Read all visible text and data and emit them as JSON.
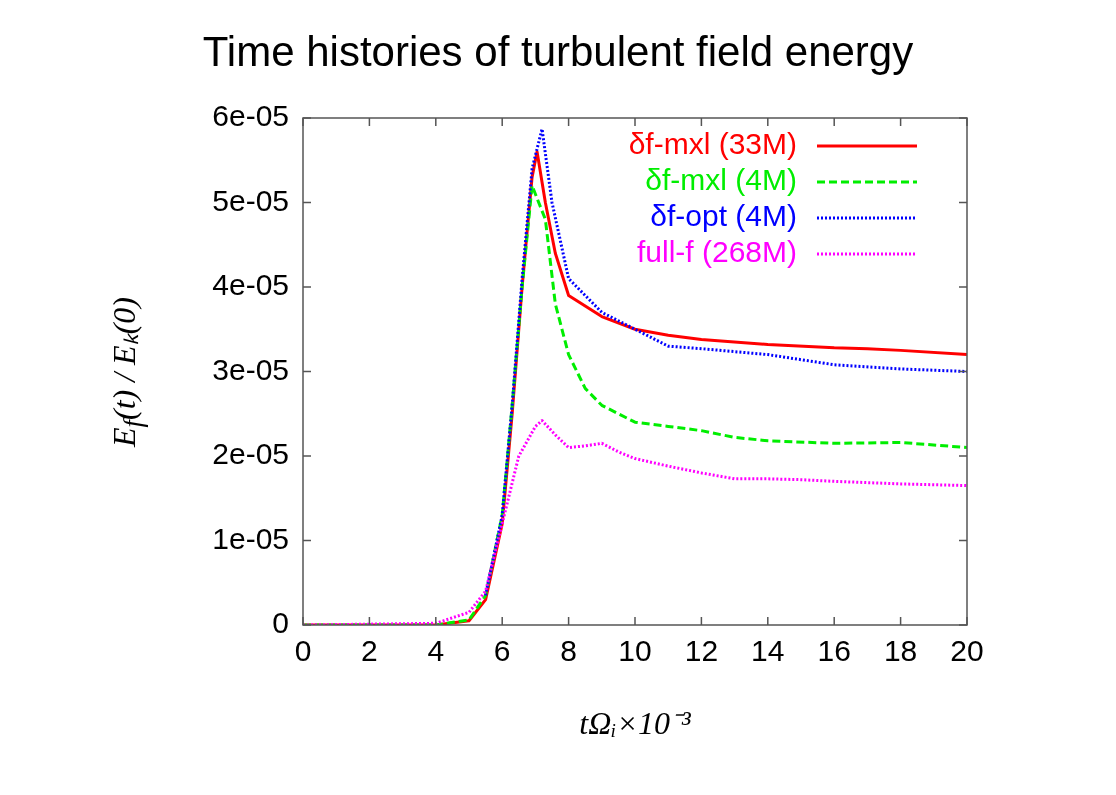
{
  "chart_data": {
    "type": "line",
    "title": "Time histories of turbulent field energy",
    "xlabel": "tΩᵢ×10⁻³",
    "ylabel": "E$_{f}$(t) / Eₖ(0)",
    "xlim": [
      0,
      20
    ],
    "xticks": [
      0,
      2,
      4,
      6,
      8,
      10,
      12,
      14,
      16,
      18,
      20
    ],
    "ylim": [
      0,
      6e-05
    ],
    "yticks": [
      {
        "value": 0,
        "label": "0"
      },
      {
        "value": 1e-05,
        "label": "1e-05"
      },
      {
        "value": 2e-05,
        "label": "2e-05"
      },
      {
        "value": 3e-05,
        "label": "3e-05"
      },
      {
        "value": 4e-05,
        "label": "4e-05"
      },
      {
        "value": 5e-05,
        "label": "5e-05"
      },
      {
        "value": 6e-05,
        "label": "6e-05"
      }
    ],
    "grid": false,
    "legend": "top right",
    "marker": "none",
    "series": [
      {
        "name": "δf-mxl (33M)",
        "color": "#ff0000",
        "line_style": "solid",
        "x": [
          0,
          4,
          5,
          5.5,
          6,
          6.3,
          6.6,
          6.9,
          7.05,
          7.3,
          7.6,
          8,
          9,
          10,
          11,
          12,
          14,
          16,
          17,
          18,
          20
        ],
        "values": [
          0,
          0,
          5e-07,
          3e-06,
          1.2e-05,
          2.5e-05,
          4e-05,
          5.3e-05,
          5.6e-05,
          5e-05,
          4.4e-05,
          3.9e-05,
          3.65e-05,
          3.5e-05,
          3.43e-05,
          3.38e-05,
          3.32e-05,
          3.28e-05,
          3.27e-05,
          3.25e-05,
          3.2e-05
        ]
      },
      {
        "name": "δf-mxl (4M)",
        "color": "#00ee00",
        "line_style": "dashed",
        "x": [
          0,
          4,
          5,
          5.5,
          6,
          6.3,
          6.6,
          6.9,
          7.3,
          7.6,
          8,
          8.5,
          9,
          10,
          11,
          12,
          13,
          14,
          16,
          18,
          20
        ],
        "values": [
          0,
          0,
          6e-07,
          3.5e-06,
          1.3e-05,
          2.6e-05,
          4e-05,
          5.2e-05,
          4.8e-05,
          3.8e-05,
          3.2e-05,
          2.8e-05,
          2.6e-05,
          2.4e-05,
          2.35e-05,
          2.3e-05,
          2.22e-05,
          2.18e-05,
          2.15e-05,
          2.16e-05,
          2.1e-05
        ]
      },
      {
        "name": "δf-opt (4M)",
        "color": "#0000ff",
        "line_style": "dotted",
        "x": [
          5.5,
          6,
          6.3,
          6.6,
          6.9,
          7.2,
          7.5,
          8,
          9,
          10,
          10.5,
          11,
          12,
          14,
          16,
          18,
          20
        ],
        "values": [
          3.5e-06,
          1.3e-05,
          2.6e-05,
          4.1e-05,
          5.4e-05,
          5.87e-05,
          5e-05,
          4.1e-05,
          3.7e-05,
          3.5e-05,
          3.4e-05,
          3.3e-05,
          3.27e-05,
          3.2e-05,
          3.08e-05,
          3.03e-05,
          3e-05
        ]
      },
      {
        "name": "full-f (268M)",
        "color": "#ff00ff",
        "line_style": "dotted",
        "x": [
          0,
          4,
          5,
          5.5,
          6,
          6.5,
          7,
          7.2,
          7.6,
          8,
          8.5,
          9,
          9.5,
          10,
          11,
          12,
          13,
          14,
          15,
          16,
          18,
          20
        ],
        "values": [
          0,
          2e-07,
          1.5e-06,
          4e-06,
          1.2e-05,
          2e-05,
          2.35e-05,
          2.42e-05,
          2.25e-05,
          2.1e-05,
          2.12e-05,
          2.15e-05,
          2.05e-05,
          1.97e-05,
          1.88e-05,
          1.8e-05,
          1.73e-05,
          1.73e-05,
          1.72e-05,
          1.7e-05,
          1.67e-05,
          1.65e-05
        ]
      }
    ]
  }
}
